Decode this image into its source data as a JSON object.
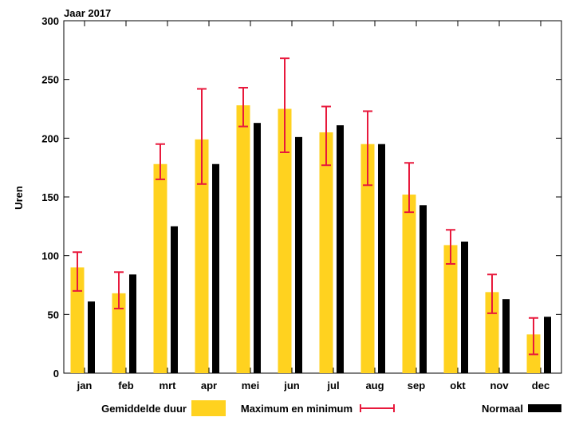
{
  "chart_data": {
    "type": "bar",
    "title": "Jaar 2017",
    "ylabel": "Uren",
    "xlabel": "",
    "ylim": [
      0,
      300
    ],
    "yticks": [
      0,
      50,
      100,
      150,
      200,
      250,
      300
    ],
    "grid": false,
    "legend_position": "bottom",
    "categories": [
      "jan",
      "feb",
      "mrt",
      "apr",
      "mei",
      "jun",
      "jul",
      "aug",
      "sep",
      "okt",
      "nov",
      "dec"
    ],
    "series": [
      {
        "name": "Gemiddelde duur",
        "color": "#ffd21f",
        "values": [
          90,
          68,
          178,
          199,
          228,
          225,
          205,
          195,
          152,
          109,
          69,
          33
        ]
      },
      {
        "name": "Normaal",
        "color": "#000000",
        "values": [
          61,
          84,
          125,
          178,
          213,
          201,
          211,
          195,
          143,
          112,
          63,
          48
        ]
      }
    ],
    "error_bars": {
      "name": "Maximum en minimum",
      "color": "#e8193c",
      "min": [
        70,
        55,
        165,
        161,
        210,
        188,
        177,
        160,
        137,
        93,
        51,
        16
      ],
      "max": [
        103,
        86,
        195,
        242,
        243,
        268,
        227,
        223,
        179,
        122,
        84,
        47
      ]
    }
  }
}
